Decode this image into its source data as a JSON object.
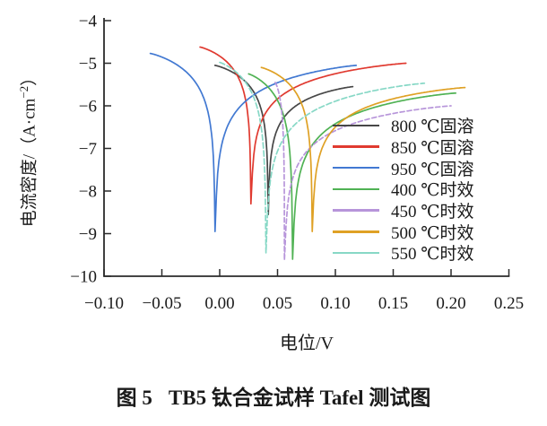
{
  "labels": {
    "ylabel_pre": "电流密度/（A·cm",
    "ylabel_sup": "−2",
    "ylabel_post": "）"
  },
  "caption": {
    "prefix": "图 5",
    "text": "TB5 钛合金试样 Tafel 测试图"
  },
  "chart_data": {
    "type": "line",
    "title": "图 5 TB5 钛合金试样 Tafel 测试图",
    "xlabel": "电位/V",
    "ylabel": "电流密度/（A·cm−2）",
    "xlim": [
      -0.1,
      0.25
    ],
    "ylim": [
      -10,
      -4
    ],
    "grid": false,
    "legend_position": "right-middle",
    "x_ticks": [
      -0.1,
      -0.05,
      0.0,
      0.05,
      0.1,
      0.15,
      0.2,
      0.25
    ],
    "x_tick_labels": [
      "−0.10",
      "−0.05",
      "0.00",
      "0.05",
      "0.10",
      "0.15",
      "0.20",
      "0.25"
    ],
    "y_ticks": [
      -4,
      -5,
      -6,
      -7,
      -8,
      -9,
      -10
    ],
    "y_tick_labels": [
      "−4",
      "−5",
      "−6",
      "−7",
      "−8",
      "−9",
      "−10"
    ],
    "series_note": "Tafel curves: cathodic branch descends from cathodic_start to a sharp dip at ecorr (corrosion potential, V) reaching dip_log_current (log10 A·cm−2), then anodic branch rises to anodic_end. Points are [potential_V, log10_current_density].",
    "series": [
      {
        "name": "800 ℃固溶",
        "color": "#474747",
        "dash": null,
        "cathodic_start": [
          -0.004,
          -5.05
        ],
        "ecorr": 0.042,
        "dip_log_current": -8.55,
        "anodic_end": [
          0.115,
          -5.55
        ]
      },
      {
        "name": "850 ℃固溶",
        "color": "#e03a30",
        "dash": null,
        "cathodic_start": [
          -0.017,
          -4.62
        ],
        "ecorr": 0.027,
        "dip_log_current": -8.3,
        "anodic_end": [
          0.161,
          -5.0
        ]
      },
      {
        "name": "950 ℃固溶",
        "color": "#4279d2",
        "dash": null,
        "cathodic_start": [
          -0.06,
          -4.77
        ],
        "ecorr": -0.004,
        "dip_log_current": -8.95,
        "anodic_end": [
          0.118,
          -5.05
        ]
      },
      {
        "name": "400 ℃时效",
        "color": "#50b254",
        "dash": null,
        "cathodic_start": [
          0.025,
          -5.25
        ],
        "ecorr": 0.063,
        "dip_log_current": -9.6,
        "anodic_end": [
          0.204,
          -5.7
        ]
      },
      {
        "name": "450 ℃时效",
        "color": "#b795da",
        "dash": "5,3",
        "cathodic_start": [
          0.048,
          -5.45
        ],
        "ecorr": 0.056,
        "dip_log_current": -9.62,
        "anodic_end": [
          0.2,
          -6.0
        ]
      },
      {
        "name": "500 ℃时效",
        "color": "#dfa125",
        "dash": null,
        "cathodic_start": [
          0.036,
          -5.1
        ],
        "ecorr": 0.08,
        "dip_log_current": -8.95,
        "anodic_end": [
          0.212,
          -5.57
        ]
      },
      {
        "name": "550 ℃时效",
        "color": "#87d8c6",
        "dash": "6,3",
        "cathodic_start": [
          0.0,
          -4.98
        ],
        "ecorr": 0.04,
        "dip_log_current": -9.45,
        "anodic_end": [
          0.177,
          -5.47
        ]
      }
    ]
  }
}
